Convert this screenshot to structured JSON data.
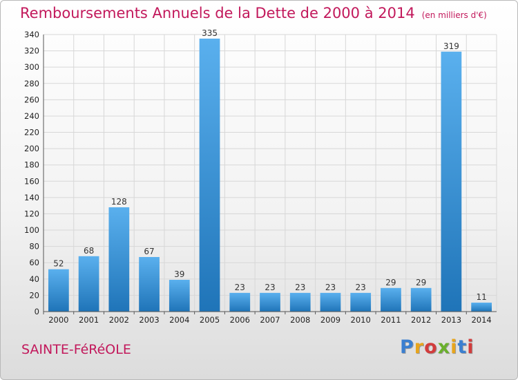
{
  "title": "Remboursements Annuels de la Dette de 2000 à 2014",
  "units": "(en milliers d'€)",
  "commune": "SAINTE-FéRéOLE",
  "logo": {
    "letters": [
      "P",
      "r",
      "o",
      "x",
      "i",
      "t",
      "i"
    ],
    "colors": [
      "#3a7fd0",
      "#e8a51c",
      "#d23c3c",
      "#6ab02c",
      "#e8a51c",
      "#3a7fd0",
      "#d23c3c"
    ]
  },
  "chart_data": {
    "type": "bar",
    "categories": [
      "2000",
      "2001",
      "2002",
      "2003",
      "2004",
      "2005",
      "2006",
      "2007",
      "2008",
      "2009",
      "2010",
      "2011",
      "2012",
      "2013",
      "2014"
    ],
    "values": [
      52,
      68,
      128,
      67,
      39,
      335,
      23,
      23,
      23,
      23,
      23,
      29,
      29,
      319,
      11
    ],
    "title": "Remboursements Annuels de la Dette de 2000 à 2014",
    "ylim": [
      0,
      340
    ],
    "yticks": [
      0,
      20,
      40,
      60,
      80,
      100,
      120,
      140,
      160,
      180,
      200,
      220,
      240,
      260,
      280,
      300,
      320,
      340
    ],
    "grid": true,
    "bar_color": "#3d96db"
  }
}
